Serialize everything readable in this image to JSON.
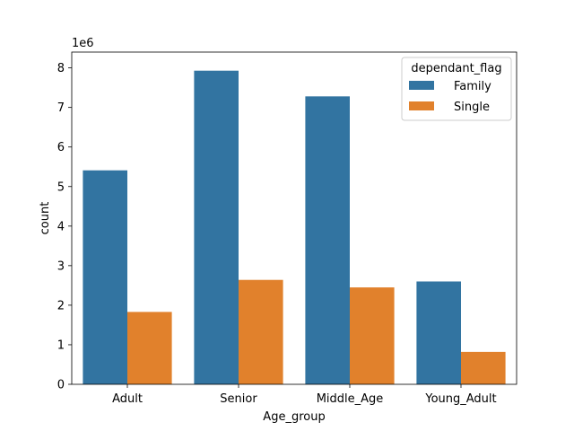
{
  "chart_data": {
    "type": "bar",
    "title": "",
    "xlabel": "Age_group",
    "ylabel": "count",
    "y_scale_label": "1e6",
    "y_scale": 1000000,
    "ylim": [
      0,
      8400000
    ],
    "yticks": [
      0,
      1000000,
      2000000,
      3000000,
      4000000,
      5000000,
      6000000,
      7000000,
      8000000
    ],
    "ytick_labels": [
      "0",
      "1",
      "2",
      "3",
      "4",
      "5",
      "6",
      "7",
      "8"
    ],
    "categories": [
      "Adult",
      "Senior",
      "Middle_Age",
      "Young_Adult"
    ],
    "legend": {
      "title": "dependant_flag",
      "placement": "top-right"
    },
    "grid": false,
    "series": [
      {
        "name": "Family",
        "color": "#3274a1",
        "values": [
          5410000,
          7930000,
          7280000,
          2600000
        ]
      },
      {
        "name": "Single",
        "color": "#e1812c",
        "values": [
          1830000,
          2640000,
          2450000,
          820000
        ]
      }
    ]
  }
}
